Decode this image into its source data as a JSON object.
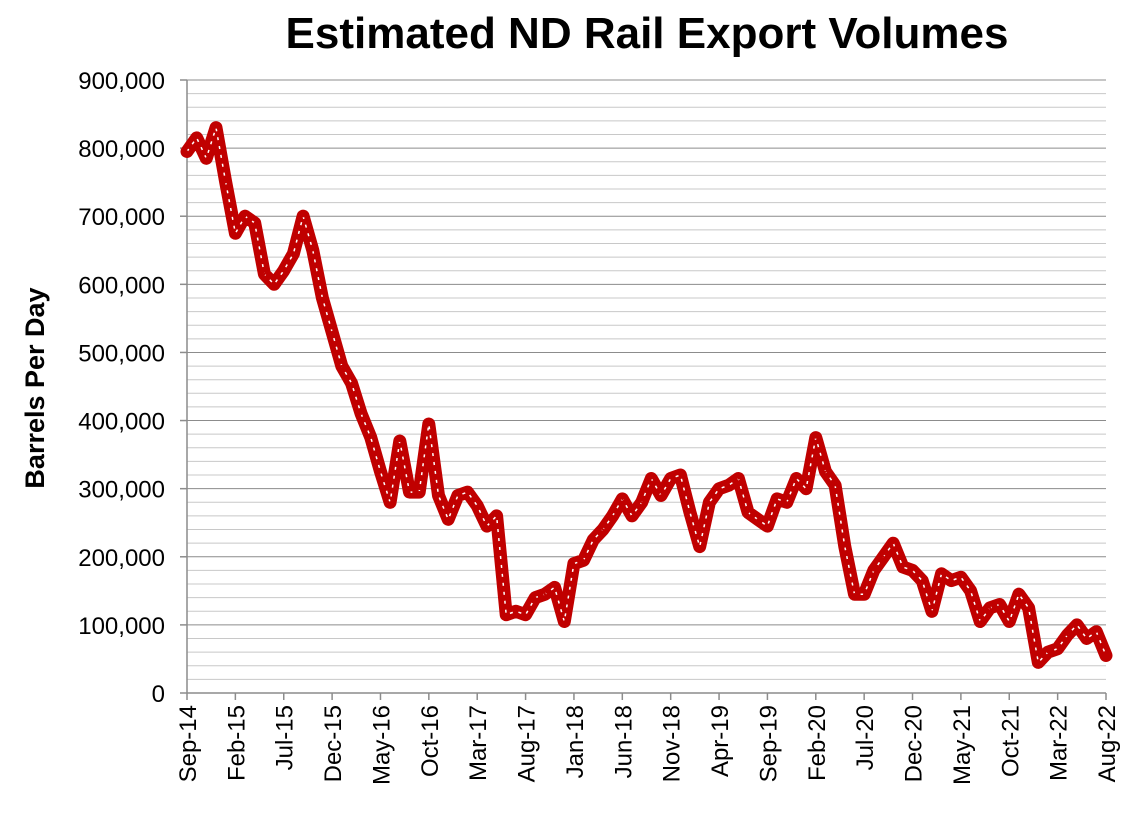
{
  "chart_data": {
    "type": "line",
    "title": "Estimated ND Rail Export Volumes",
    "xlabel": "",
    "ylabel": "Barrels Per Day",
    "ylim": [
      0,
      900000
    ],
    "y_ticks": [
      0,
      100000,
      200000,
      300000,
      400000,
      500000,
      600000,
      700000,
      800000,
      900000
    ],
    "y_tick_labels": [
      "0",
      "100,000",
      "200,000",
      "300,000",
      "400,000",
      "500,000",
      "600,000",
      "700,000",
      "800,000",
      "900,000"
    ],
    "x_tick_labels": [
      "Sep-14",
      "Feb-15",
      "Jul-15",
      "Dec-15",
      "May-16",
      "Oct-16",
      "Mar-17",
      "Aug-17",
      "Jan-18",
      "Jun-18",
      "Nov-18",
      "Apr-19",
      "Sep-19",
      "Feb-20",
      "Jul-20",
      "Dec-20",
      "May-21",
      "Oct-21",
      "Mar-22",
      "Aug-22"
    ],
    "x_tick_month_index": [
      0,
      5,
      10,
      15,
      20,
      25,
      30,
      35,
      40,
      45,
      50,
      55,
      60,
      65,
      70,
      75,
      80,
      85,
      90,
      95
    ],
    "grid": true,
    "line_color": "#c00000",
    "series": [
      {
        "name": "Estimated ND Rail Export Volumes",
        "values": [
          795000,
          815000,
          785000,
          830000,
          750000,
          675000,
          700000,
          690000,
          615000,
          600000,
          620000,
          645000,
          700000,
          650000,
          580000,
          530000,
          480000,
          455000,
          410000,
          375000,
          325000,
          280000,
          370000,
          295000,
          295000,
          395000,
          290000,
          255000,
          290000,
          295000,
          275000,
          245000,
          260000,
          115000,
          120000,
          115000,
          140000,
          145000,
          155000,
          105000,
          190000,
          195000,
          225000,
          240000,
          260000,
          285000,
          260000,
          280000,
          315000,
          290000,
          315000,
          320000,
          265000,
          215000,
          280000,
          300000,
          305000,
          315000,
          265000,
          255000,
          245000,
          285000,
          280000,
          315000,
          300000,
          375000,
          325000,
          305000,
          215000,
          145000,
          145000,
          180000,
          200000,
          220000,
          185000,
          180000,
          165000,
          120000,
          175000,
          165000,
          170000,
          150000,
          105000,
          125000,
          130000,
          105000,
          145000,
          125000,
          45000,
          60000,
          65000,
          85000,
          100000,
          80000,
          90000,
          55000
        ]
      }
    ]
  }
}
